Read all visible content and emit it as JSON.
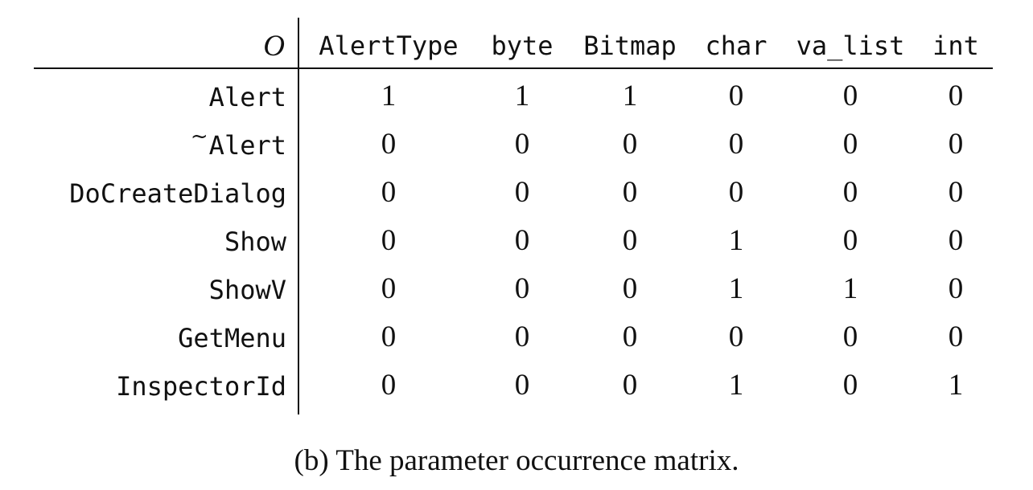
{
  "table": {
    "corner_label": "O",
    "columns": [
      "AlertType",
      "byte",
      "Bitmap",
      "char",
      "va_list",
      "int"
    ],
    "rows": [
      {
        "label": "Alert",
        "values": [
          1,
          1,
          1,
          0,
          0,
          0
        ]
      },
      {
        "label": "~Alert",
        "values": [
          0,
          0,
          0,
          0,
          0,
          0
        ]
      },
      {
        "label": "DoCreateDialog",
        "values": [
          0,
          0,
          0,
          0,
          0,
          0
        ]
      },
      {
        "label": "Show",
        "values": [
          0,
          0,
          0,
          1,
          0,
          0
        ]
      },
      {
        "label": "ShowV",
        "values": [
          0,
          0,
          0,
          1,
          1,
          0
        ]
      },
      {
        "label": "GetMenu",
        "values": [
          0,
          0,
          0,
          0,
          0,
          0
        ]
      },
      {
        "label": "InspectorId",
        "values": [
          0,
          0,
          0,
          1,
          0,
          1
        ]
      }
    ]
  },
  "caption": "(b) The parameter occurrence matrix."
}
